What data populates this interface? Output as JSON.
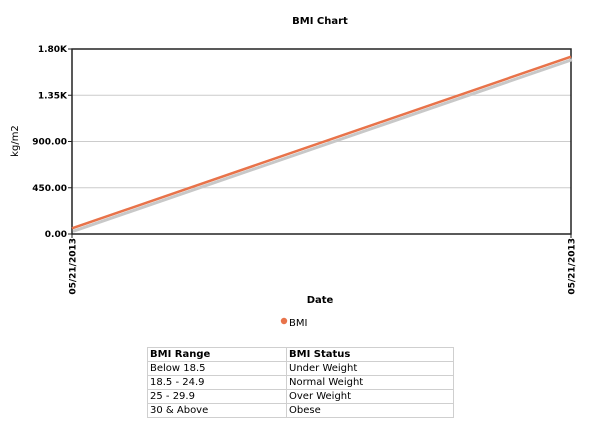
{
  "chart_data": {
    "type": "line",
    "title": "BMI Chart",
    "xlabel": "Date",
    "ylabel": "kg/m2",
    "x_tick_labels": [
      "05/21/2013",
      "05/21/2013"
    ],
    "y_tick_labels": [
      "0.00",
      "450.00",
      "900.00",
      "1.35K",
      "1.80K"
    ],
    "ylim": [
      0,
      1800
    ],
    "grid": true,
    "legend_position": "bottom-center",
    "series": [
      {
        "name": "BMI",
        "color": "#e8734a",
        "shadow_color": "#c8c8c8",
        "points": [
          {
            "x": 0,
            "y": 55
          },
          {
            "x": 1,
            "y": 1725
          }
        ]
      }
    ]
  },
  "table": {
    "headers": [
      "BMI Range",
      "BMI Status"
    ],
    "rows": [
      [
        "Below 18.5",
        "Under Weight"
      ],
      [
        "18.5 - 24.9",
        "Normal Weight"
      ],
      [
        "25 - 29.9",
        "Over Weight"
      ],
      [
        "30 & Above",
        "Obese"
      ]
    ]
  }
}
